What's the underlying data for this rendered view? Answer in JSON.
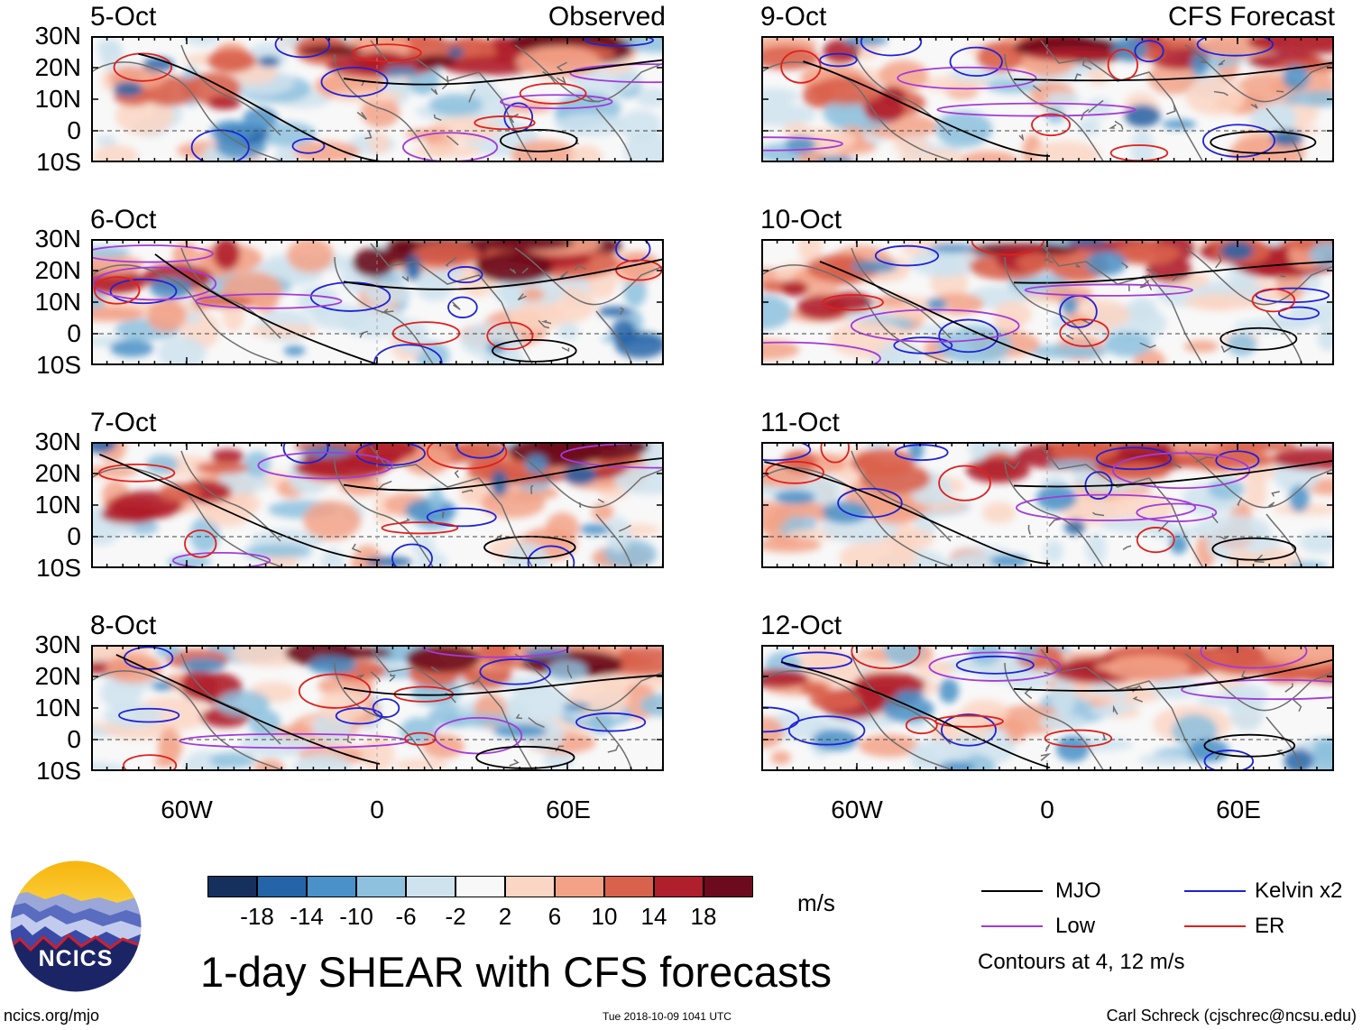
{
  "observed_heading": "Observed",
  "forecast_heading": "CFS Forecast",
  "y_axis_labels": [
    "30N",
    "20N",
    "10N",
    "0",
    "10S"
  ],
  "x_axis_labels": [
    "60W",
    "0",
    "60E"
  ],
  "panels": [
    {
      "date": "5-Oct",
      "type": "observed"
    },
    {
      "date": "6-Oct",
      "type": "observed"
    },
    {
      "date": "7-Oct",
      "type": "observed"
    },
    {
      "date": "8-Oct",
      "type": "observed"
    },
    {
      "date": "9-Oct",
      "type": "forecast"
    },
    {
      "date": "10-Oct",
      "type": "forecast"
    },
    {
      "date": "11-Oct",
      "type": "forecast"
    },
    {
      "date": "12-Oct",
      "type": "forecast"
    }
  ],
  "colorbar": {
    "labels": [
      "-18",
      "-14",
      "-10",
      "-6",
      "-2",
      "2",
      "6",
      "10",
      "14",
      "18"
    ],
    "colors": [
      "#16305e",
      "#2464a8",
      "#4991c8",
      "#8dc1de",
      "#cfe3ef",
      "#f8f8f8",
      "#fbd6c4",
      "#f3a287",
      "#d9624d",
      "#b01f2c",
      "#6c0b1d"
    ],
    "unit": "m/s"
  },
  "legend": {
    "items": [
      {
        "label": "MJO",
        "color": "#000000"
      },
      {
        "label": "Kelvin x2",
        "color": "#1e22d6"
      },
      {
        "label": "Low",
        "color": "#a43ad8"
      },
      {
        "label": "ER",
        "color": "#e0201c"
      }
    ],
    "note": "Contours at 4, 12 m/s"
  },
  "logo_text": "NCICS",
  "title": "1-day SHEAR with CFS forecasts",
  "footer": {
    "url": "ncics.org/mjo",
    "timestamp": "Tue 2018-10-09 1041 UTC",
    "credit": "Carl Schreck (cjschrec@ncsu.edu)"
  }
}
